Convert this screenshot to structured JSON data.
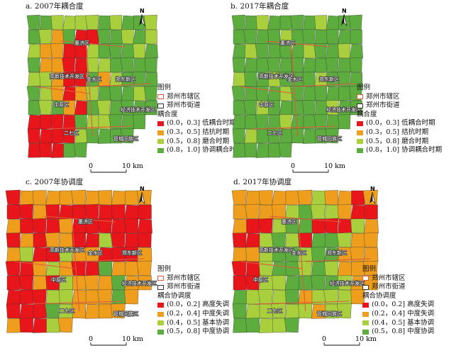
{
  "colors": {
    "red": "#e8151b",
    "orange": "#ee9e1c",
    "lightgreen": "#a9cf3d",
    "green": "#5cad3d",
    "district_border": "#e05a3a",
    "street_border": "#333333"
  },
  "common_legend": {
    "title": "图例",
    "district": "郑州市辖区",
    "street": "郑州市街道"
  },
  "scale": {
    "zero": "0",
    "ten": "10 km"
  },
  "north_label": "N",
  "district_names": [
    "惠济区",
    "高新技术开发区",
    "金水区",
    "中原区",
    "郑东新区",
    "经济技术开发区",
    "二七区",
    "管城回族区"
  ],
  "panels": [
    {
      "id": "a",
      "title": "a. 2007年耦合度",
      "legend_subtitle": "耦合度",
      "classes": [
        "(0.0，0.3] 低耦合时期",
        "(0.3，0.5] 拮抗时期",
        "(0.5，0.8] 磨合时期",
        "(0.8，1.0] 协调耦合时期"
      ],
      "palette": [
        "red",
        "orange",
        "lightgreen",
        "green"
      ]
    },
    {
      "id": "b",
      "title": "b. 2017年耦合度",
      "legend_subtitle": "耦合度",
      "classes": [
        "(0.0，0.3] 低耦合时期",
        "(0.3，0.5] 拮抗时期",
        "(0.5，0.8] 磨合时期",
        "(0.8，1.0] 协调耦合时期"
      ],
      "palette": [
        "red",
        "orange",
        "lightgreen",
        "green"
      ]
    },
    {
      "id": "c",
      "title": "c. 2007年协调度",
      "legend_subtitle": "耦合协调度",
      "classes": [
        "(0.0，0.2] 高度失调",
        "(0.2，0.4] 中度失调",
        "(0.4，0.5] 基本协调",
        "(0.5，0.8] 中度协调"
      ],
      "palette": [
        "red",
        "orange",
        "lightgreen",
        "green"
      ]
    },
    {
      "id": "d",
      "title": "d. 2017年协调度",
      "legend_subtitle": "耦合协调度",
      "classes": [
        "(0.0，0.2] 高度失调",
        "(0.2，0.4] 中度失调",
        "(0.4，0.5] 基本协调",
        "(0.5，0.8] 中度协调"
      ],
      "palette": [
        "red",
        "orange",
        "lightgreen",
        "green"
      ]
    }
  ],
  "map_cells": {
    "a": [
      "GGLLLLGLGGL",
      "GLOGRRGGLGL",
      "LOORRLGGGLG",
      "GOORRLLGGGG",
      "LLORRGOLGGG",
      "GLOROLGGGLG",
      "GLGORGLGGGG",
      "RRRRGLLGGG.",
      "RRRRLGGGG..",
      "RRRGG......"
    ],
    "b": [
      "GGLGGGGLGGG",
      "GGGGLGGGGGG",
      "GLGGGGLGGLG",
      "GGGGGGGGGGG",
      "LGGLGGGLGGG",
      "GGGGLGGGGGG",
      "GGLGGGGGLGG",
      "GGGGLGGGGG.",
      "GLGGGGGGG..",
      "GGGGG......"
    ],
    "c": [
      "ROOOOOOOOOO",
      "RRORRRRRRRR",
      "ORRRORRRRRR",
      "ROROORRLRRR",
      "OLRRLOORRRO",
      "RROLORRGOOO",
      "RRORLOOOGOO",
      "RRRLLOOOGO.",
      "RRRGLOOOO..",
      "ORRLO......"
    ],
    "d": [
      "OOOOOOLOORO",
      "OOOOLGLLORR",
      "ORRLGGRRRLO",
      "RRLGLRGGLOO",
      "OOLGGLGGOOO",
      "RRLGGLGLOOO",
      "RRLLGGGGLOO",
      "GLLLGOLLLO.",
      "GLLLLLOLL..",
      "GGLLG......"
    ]
  }
}
